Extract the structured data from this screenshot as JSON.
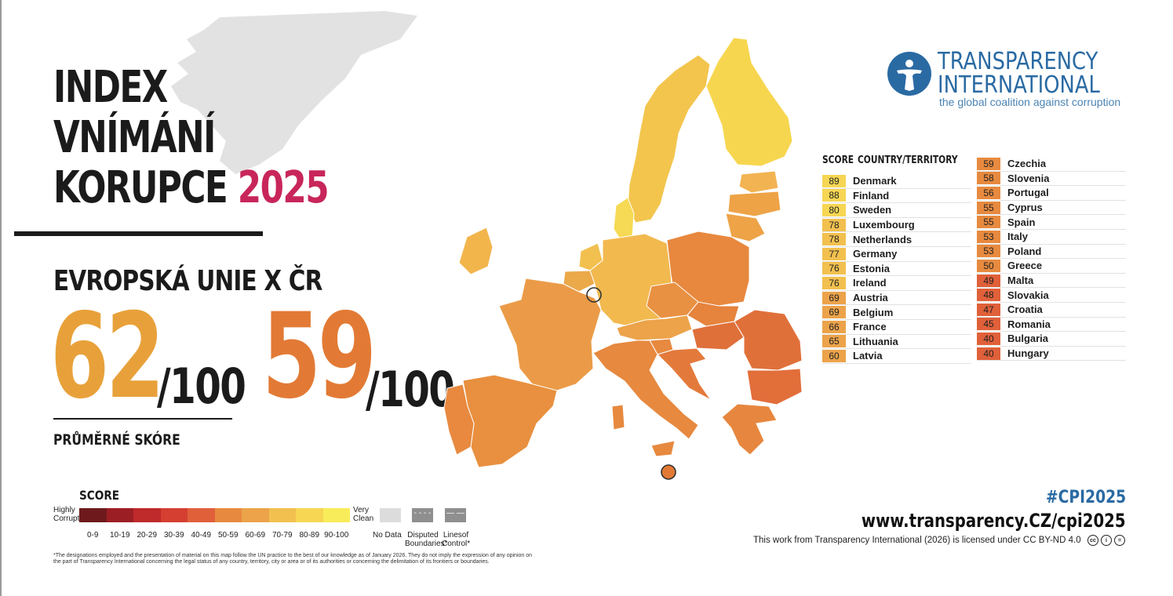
{
  "title": {
    "line1": "INDEX",
    "line2": "VNÍMÁNÍ",
    "line3": "KORUPCE",
    "year": "2025"
  },
  "subtitle": "EVROPSKÁ UNIE X ČR",
  "eu": {
    "score": "62",
    "denominator": "/100"
  },
  "cz": {
    "score": "59",
    "denominator": "/100"
  },
  "average_label": "PRŮMĚRNÉ SKÓRE",
  "legend": {
    "title": "SCORE",
    "low_label": "Highly Corrupt",
    "high_label": "Very Clean",
    "ranges": [
      "0-9",
      "10-19",
      "20-29",
      "30-39",
      "40-49",
      "50-59",
      "60-69",
      "70-79",
      "80-89",
      "90-100"
    ],
    "colors": [
      "#6e1a1c",
      "#9c1e25",
      "#bf2a2b",
      "#d53f31",
      "#e0603a",
      "#e78a3f",
      "#eca34a",
      "#f2c04f",
      "#f6d653",
      "#f9ec5a"
    ],
    "no_data": "No Data",
    "disputed": "Disputed Boundaries*",
    "lines_of_control": "Linesof Control*",
    "disclaimer": "*The designations employed and the presentation of material on this map follow the UN practice to the best of our knowledge as of January 2026. They do not imply the expression of any opinion on the part of Transparency International concerning the legal status of any country, territory, city or area or of its authorities or concerning the delimitation of its frontiers or boundaries."
  },
  "table": {
    "header_score": "SCORE",
    "header_country": "COUNTRY/TERRITORY",
    "rows_left": [
      {
        "score": "89",
        "country": "Denmark"
      },
      {
        "score": "88",
        "country": "Finland"
      },
      {
        "score": "80",
        "country": "Sweden"
      },
      {
        "score": "78",
        "country": "Luxembourg"
      },
      {
        "score": "78",
        "country": "Netherlands"
      },
      {
        "score": "77",
        "country": "Germany"
      },
      {
        "score": "76",
        "country": "Estonia"
      },
      {
        "score": "76",
        "country": "Ireland"
      },
      {
        "score": "69",
        "country": "Austria"
      },
      {
        "score": "69",
        "country": "Belgium"
      },
      {
        "score": "66",
        "country": "France"
      },
      {
        "score": "65",
        "country": "Lithuania"
      },
      {
        "score": "60",
        "country": "Latvia"
      }
    ],
    "rows_right": [
      {
        "score": "59",
        "country": "Czechia"
      },
      {
        "score": "58",
        "country": "Slovenia"
      },
      {
        "score": "56",
        "country": "Portugal"
      },
      {
        "score": "55",
        "country": "Cyprus"
      },
      {
        "score": "55",
        "country": "Spain"
      },
      {
        "score": "53",
        "country": "Italy"
      },
      {
        "score": "53",
        "country": "Poland"
      },
      {
        "score": "50",
        "country": "Greece"
      },
      {
        "score": "49",
        "country": "Malta"
      },
      {
        "score": "48",
        "country": "Slovakia"
      },
      {
        "score": "47",
        "country": "Croatia"
      },
      {
        "score": "45",
        "country": "Romania"
      },
      {
        "score": "40",
        "country": "Bulgaria"
      },
      {
        "score": "40",
        "country": "Hungary"
      }
    ]
  },
  "logo": {
    "name_line1": "TRANSPARENCY",
    "name_line2": "INTERNATIONAL",
    "tagline": "the global coalition against corruption",
    "color": "#2a6aa3"
  },
  "hashtag": "#CPI2025",
  "url": "www.transparency.CZ/cpi2025",
  "license": "This work from Transparency International (2026) is licensed under CC BY-ND 4.0"
}
